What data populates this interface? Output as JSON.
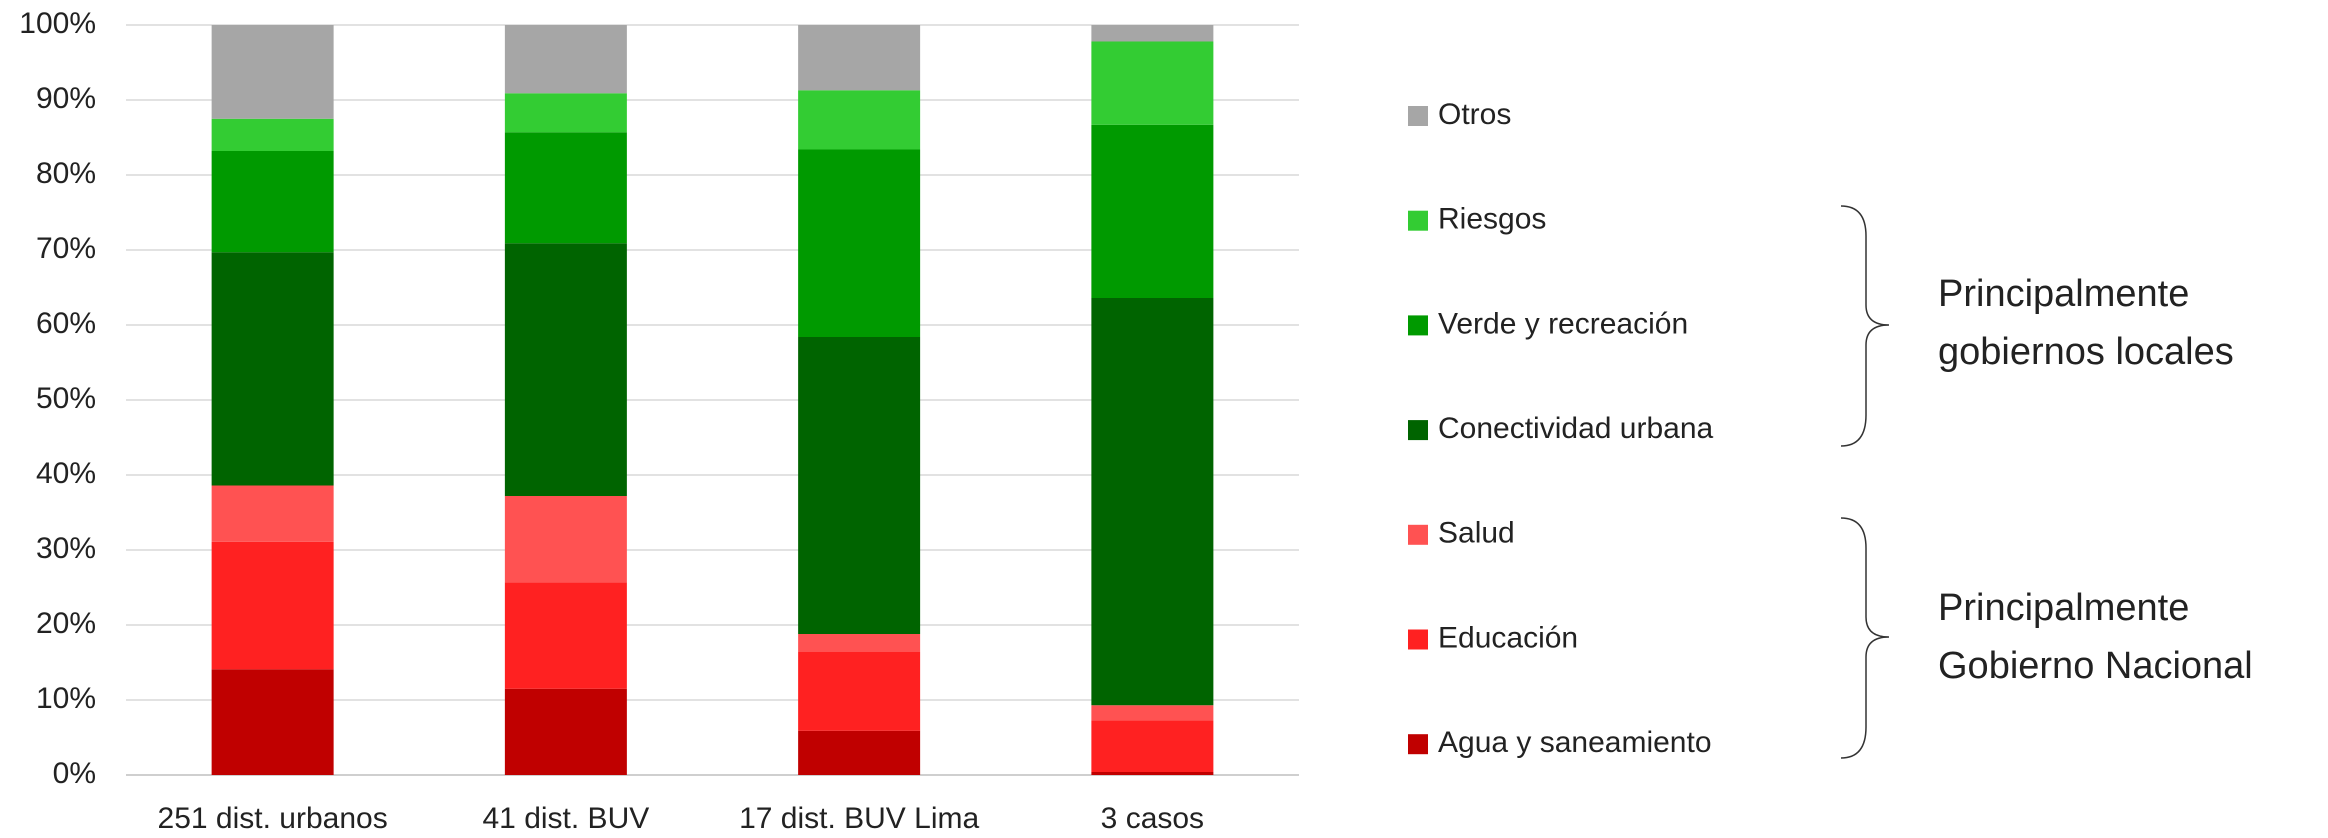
{
  "chart_data": {
    "type": "stacked_bar",
    "categories": [
      "251 dist. urbanos",
      "41 dist. BUV",
      "17 dist. BUV Lima",
      "3 casos"
    ],
    "series": [
      {
        "name": "Agua y saneamiento",
        "color": "#c00000",
        "values": [
          14.1,
          11.5,
          5.9,
          0.4
        ]
      },
      {
        "name": "Educación",
        "color": "#ff2121",
        "values": [
          17.0,
          14.2,
          10.5,
          6.9
        ]
      },
      {
        "name": "Salud",
        "color": "#ff5252",
        "values": [
          7.5,
          11.5,
          2.4,
          2.0
        ]
      },
      {
        "name": "Conectividad urbana",
        "color": "#006400",
        "values": [
          31.1,
          33.7,
          39.6,
          54.3
        ]
      },
      {
        "name": "Verde y recreación",
        "color": "#009a00",
        "values": [
          13.5,
          14.8,
          25.0,
          23.1
        ]
      },
      {
        "name": "Riesgos",
        "color": "#33cc33",
        "values": [
          4.3,
          5.2,
          7.9,
          11.1
        ]
      },
      {
        "name": "Otros",
        "color": "#a6a6a6",
        "values": [
          12.5,
          9.1,
          8.7,
          2.2
        ]
      }
    ],
    "ylim": [
      0,
      100
    ],
    "yticks": [
      {
        "value": 0,
        "label": "0%"
      },
      {
        "value": 10,
        "label": "10%"
      },
      {
        "value": 20,
        "label": "20%"
      },
      {
        "value": 30,
        "label": "30%"
      },
      {
        "value": 40,
        "label": "40%"
      },
      {
        "value": 50,
        "label": "50%"
      },
      {
        "value": 60,
        "label": "60%"
      },
      {
        "value": 70,
        "label": "70%"
      },
      {
        "value": 80,
        "label": "80%"
      },
      {
        "value": 90,
        "label": "90%"
      },
      {
        "value": 100,
        "label": "100%"
      }
    ],
    "grid": true,
    "legend": "right",
    "annotations": [
      {
        "lines": [
          "Principalmente",
          "gobiernos locales"
        ]
      },
      {
        "lines": [
          "Principalmente",
          "Gobierno Nacional"
        ]
      }
    ]
  }
}
